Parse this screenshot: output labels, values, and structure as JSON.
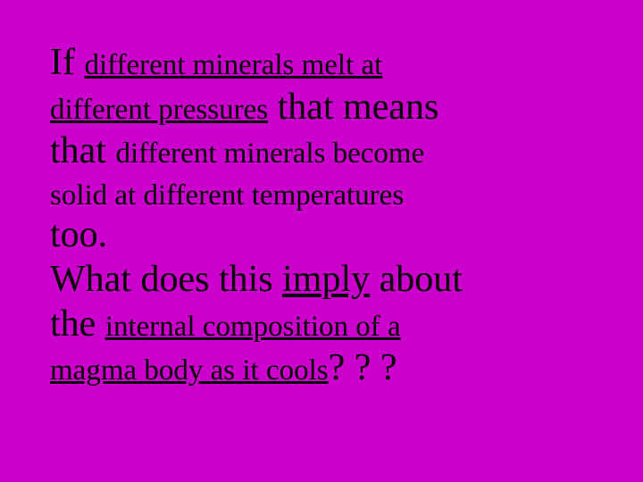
{
  "slide": {
    "background_color": "#cc00cc",
    "text_color": "#000000",
    "font_family": "Comic Sans MS",
    "base_fontsize_pt": 38,
    "small_fontsize_pt": 33,
    "large_fontsize_pt": 42,
    "t": {
      "if": "If ",
      "phrase1a": "different minerals melt at",
      "phrase1b": "different pressures",
      "that_means": " that means",
      "that": "that ",
      "phrase2a": "different minerals become",
      "phrase2b": "solid at different temperatures",
      "too": "too.",
      "what_does_this": "What does this ",
      "imply": "imply",
      "about": " about",
      "the": "the ",
      "phrase3a": "internal composition of a",
      "phrase3b": "magma body as it cools",
      "qmarks": "? ? ?"
    }
  }
}
